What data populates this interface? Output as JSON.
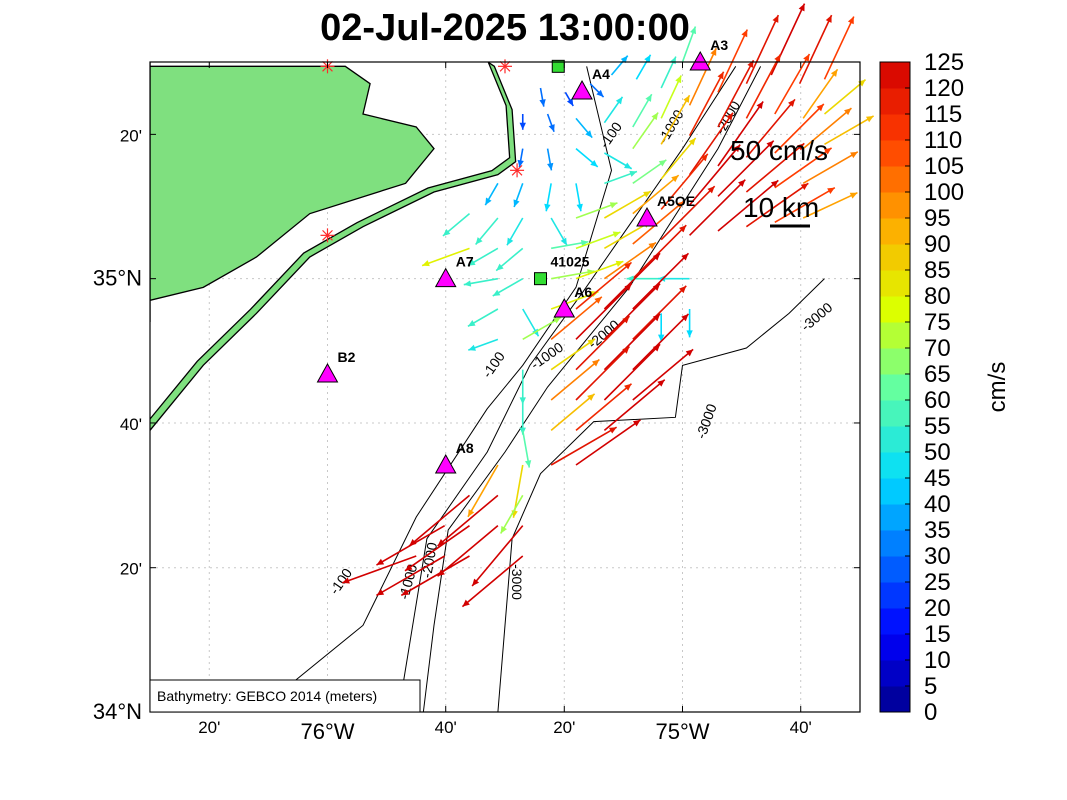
{
  "title": "02-Jul-2025 13:00:00",
  "lat_ticks": [
    {
      "lat": 34.0,
      "label": "34°N"
    },
    {
      "lat": 34.333,
      "label": "20'"
    },
    {
      "lat": 34.667,
      "label": "40'"
    },
    {
      "lat": 35.0,
      "label": "35°N"
    },
    {
      "lat": 35.333,
      "label": "20'"
    }
  ],
  "lon_ticks": [
    {
      "lon": -76.333,
      "label": "20'"
    },
    {
      "lon": -76.0,
      "label": "76°W"
    },
    {
      "lon": -75.667,
      "label": "40'"
    },
    {
      "lon": -75.333,
      "label": "20'"
    },
    {
      "lon": -75.0,
      "label": "75°W"
    },
    {
      "lon": -74.667,
      "label": "40'"
    }
  ],
  "stations": [
    {
      "id": "A4",
      "label": "A4",
      "lon": -75.283,
      "lat": 35.433,
      "symbol": "triangle",
      "color": "#ff00ff"
    },
    {
      "id": "A3",
      "label": "A3",
      "lon": -74.95,
      "lat": 35.5,
      "symbol": "triangle",
      "color": "#ff00ff"
    },
    {
      "id": "A5OE",
      "label": "A5OE",
      "lon": -75.1,
      "lat": 35.14,
      "symbol": "triangle",
      "color": "#ff00ff"
    },
    {
      "id": "A7",
      "label": "A7",
      "lon": -75.667,
      "lat": 35.0,
      "symbol": "triangle",
      "color": "#ff00ff"
    },
    {
      "id": "A6",
      "label": "A6",
      "lon": -75.333,
      "lat": 34.93,
      "symbol": "triangle",
      "color": "#ff00ff"
    },
    {
      "id": "B2",
      "label": "B2",
      "lon": -76.0,
      "lat": 34.78,
      "symbol": "triangle",
      "color": "#ff00ff"
    },
    {
      "id": "A8",
      "label": "A8",
      "lon": -75.667,
      "lat": 34.57,
      "symbol": "triangle",
      "color": "#ff00ff"
    },
    {
      "id": "41025",
      "label": "41025",
      "lon": -75.4,
      "lat": 35.0,
      "symbol": "square",
      "color": "#33dd33"
    },
    {
      "id": "buoy-top",
      "label": "",
      "lon": -75.35,
      "lat": 35.49,
      "symbol": "square",
      "color": "#33dd33"
    }
  ],
  "radar_sites": [
    {
      "lon": -76.0,
      "lat": 35.49
    },
    {
      "lon": -75.5,
      "lat": 35.49
    },
    {
      "lon": -75.466,
      "lat": 35.25
    },
    {
      "lon": -76.0,
      "lat": 35.1
    }
  ],
  "contours": [
    {
      "level": -100,
      "label": "-100",
      "points": [
        [
          -76.2,
          34.0
        ],
        [
          -75.9,
          34.2
        ],
        [
          -75.75,
          34.45
        ],
        [
          -75.55,
          34.7
        ],
        [
          -75.45,
          34.8
        ],
        [
          -75.3,
          34.98
        ],
        [
          -75.2,
          35.25
        ],
        [
          -75.27,
          35.49
        ]
      ]
    },
    {
      "level": -1000,
      "label": "-1000",
      "points": [
        [
          -75.8,
          34.0
        ],
        [
          -75.76,
          34.2
        ],
        [
          -75.72,
          34.4
        ],
        [
          -75.55,
          34.6
        ],
        [
          -75.43,
          34.8
        ],
        [
          -75.28,
          34.97
        ],
        [
          -75.0,
          35.3
        ],
        [
          -74.85,
          35.49
        ]
      ]
    },
    {
      "level": -2000,
      "label": "-2000",
      "points": [
        [
          -75.73,
          34.0
        ],
        [
          -75.7,
          34.2
        ],
        [
          -75.66,
          34.42
        ],
        [
          -75.5,
          34.6
        ],
        [
          -75.38,
          34.75
        ],
        [
          -75.15,
          34.98
        ],
        [
          -74.9,
          35.3
        ],
        [
          -74.78,
          35.49
        ]
      ]
    },
    {
      "level": -3000,
      "label": "-3000",
      "points": [
        [
          -75.52,
          34.0
        ],
        [
          -75.5,
          34.2
        ],
        [
          -75.48,
          34.4
        ],
        [
          -75.4,
          34.55
        ],
        [
          -75.25,
          34.67
        ],
        [
          -75.02,
          34.68
        ],
        [
          -75.0,
          34.8
        ],
        [
          -74.82,
          34.84
        ],
        [
          -74.7,
          34.92
        ],
        [
          -74.6,
          35.0
        ]
      ]
    }
  ],
  "contour_labels": [
    {
      "text": "-100",
      "lon": -75.53,
      "lat": 34.8,
      "angle": -55
    },
    {
      "text": "-100",
      "lon": -75.96,
      "lat": 34.3,
      "angle": -55
    },
    {
      "text": "-100",
      "lon": -75.2,
      "lat": 35.33,
      "angle": -55
    },
    {
      "text": "-1000",
      "lon": -75.38,
      "lat": 34.82,
      "angle": -35
    },
    {
      "text": "-1000",
      "lon": -75.77,
      "lat": 34.3,
      "angle": -75
    },
    {
      "text": "-1000",
      "lon": -75.03,
      "lat": 35.35,
      "angle": -60
    },
    {
      "text": "-2000",
      "lon": -75.22,
      "lat": 34.87,
      "angle": -40
    },
    {
      "text": "-2000",
      "lon": -75.71,
      "lat": 34.35,
      "angle": -80
    },
    {
      "text": "-2000",
      "lon": -74.87,
      "lat": 35.37,
      "angle": -60
    },
    {
      "text": "-3000",
      "lon": -75.47,
      "lat": 34.3,
      "angle": 90
    },
    {
      "text": "-3000",
      "lon": -74.93,
      "lat": 34.67,
      "angle": -70
    },
    {
      "text": "-3000",
      "lon": -74.62,
      "lat": 34.91,
      "angle": -40
    }
  ],
  "coastline": {
    "mainland": [
      [
        -76.5,
        35.49
      ],
      [
        -75.95,
        35.49
      ],
      [
        -75.88,
        35.45
      ],
      [
        -75.9,
        35.38
      ],
      [
        -75.75,
        35.35
      ],
      [
        -75.7,
        35.3
      ],
      [
        -75.78,
        35.22
      ],
      [
        -76.05,
        35.15
      ],
      [
        -76.2,
        35.05
      ],
      [
        -76.35,
        34.98
      ],
      [
        -76.5,
        34.95
      ]
    ],
    "barrier": [
      [
        -75.53,
        35.49
      ],
      [
        -75.48,
        35.39
      ],
      [
        -75.47,
        35.27
      ],
      [
        -75.52,
        35.24
      ],
      [
        -75.7,
        35.2
      ],
      [
        -75.9,
        35.12
      ],
      [
        -76.05,
        35.05
      ],
      [
        -76.2,
        34.92
      ],
      [
        -76.35,
        34.8
      ],
      [
        -76.5,
        34.65
      ]
    ],
    "land_color": "#7fe07f"
  },
  "vectors": [
    [
      -75.4,
      35.44,
      -80,
      30
    ],
    [
      -75.33,
      35.43,
      -60,
      25
    ],
    [
      -75.26,
      35.45,
      -45,
      30
    ],
    [
      -75.2,
      35.47,
      50,
      40
    ],
    [
      -75.13,
      35.46,
      60,
      45
    ],
    [
      -75.06,
      35.44,
      65,
      55
    ],
    [
      -75.0,
      35.5,
      70,
      60
    ],
    [
      -75.45,
      35.38,
      -90,
      25
    ],
    [
      -75.38,
      35.38,
      -70,
      30
    ],
    [
      -75.3,
      35.37,
      -50,
      40
    ],
    [
      -75.22,
      35.36,
      55,
      50
    ],
    [
      -75.14,
      35.35,
      60,
      60
    ],
    [
      -75.06,
      35.37,
      65,
      75
    ],
    [
      -74.98,
      35.4,
      65,
      100
    ],
    [
      -74.9,
      35.43,
      65,
      110
    ],
    [
      -74.82,
      35.45,
      65,
      120
    ],
    [
      -74.75,
      35.47,
      65,
      125
    ],
    [
      -74.67,
      35.45,
      65,
      120
    ],
    [
      -74.6,
      35.46,
      65,
      110
    ],
    [
      -75.45,
      35.3,
      -100,
      30
    ],
    [
      -75.38,
      35.3,
      -80,
      35
    ],
    [
      -75.3,
      35.3,
      -40,
      45
    ],
    [
      -75.22,
      35.29,
      -30,
      50
    ],
    [
      -75.14,
      35.3,
      55,
      70
    ],
    [
      -75.06,
      35.31,
      60,
      90
    ],
    [
      -74.98,
      35.33,
      62,
      115
    ],
    [
      -74.9,
      35.35,
      62,
      120
    ],
    [
      -74.82,
      35.37,
      62,
      115
    ],
    [
      -74.74,
      35.38,
      60,
      110
    ],
    [
      -74.66,
      35.37,
      55,
      95
    ],
    [
      -74.6,
      35.38,
      40,
      85
    ],
    [
      -75.52,
      35.22,
      -120,
      40
    ],
    [
      -75.45,
      35.22,
      -110,
      40
    ],
    [
      -75.37,
      35.22,
      -100,
      45
    ],
    [
      -75.3,
      35.22,
      -80,
      45
    ],
    [
      -75.22,
      35.22,
      20,
      55
    ],
    [
      -75.14,
      35.22,
      35,
      65
    ],
    [
      -75.06,
      35.23,
      50,
      85
    ],
    [
      -74.98,
      35.24,
      55,
      120
    ],
    [
      -74.9,
      35.26,
      55,
      125
    ],
    [
      -74.82,
      35.28,
      50,
      120
    ],
    [
      -74.74,
      35.29,
      45,
      110
    ],
    [
      -74.66,
      35.3,
      40,
      100
    ],
    [
      -74.6,
      35.31,
      30,
      90
    ],
    [
      -75.6,
      35.15,
      -140,
      55
    ],
    [
      -75.52,
      35.14,
      -130,
      55
    ],
    [
      -75.45,
      35.14,
      -120,
      50
    ],
    [
      -75.37,
      35.14,
      -60,
      50
    ],
    [
      -75.3,
      35.14,
      20,
      70
    ],
    [
      -75.22,
      35.14,
      30,
      85
    ],
    [
      -75.14,
      35.15,
      40,
      95
    ],
    [
      -75.06,
      35.16,
      50,
      115
    ],
    [
      -74.98,
      35.17,
      50,
      125
    ],
    [
      -74.9,
      35.19,
      45,
      125
    ],
    [
      -74.82,
      35.2,
      40,
      120
    ],
    [
      -74.74,
      35.21,
      35,
      110
    ],
    [
      -74.66,
      35.22,
      30,
      100
    ],
    [
      -75.6,
      35.07,
      -160,
      80
    ],
    [
      -75.52,
      35.07,
      -150,
      55
    ],
    [
      -75.45,
      35.07,
      -140,
      55
    ],
    [
      -75.37,
      35.07,
      10,
      60
    ],
    [
      -75.3,
      35.07,
      20,
      75
    ],
    [
      -75.22,
      35.07,
      30,
      85
    ],
    [
      -75.14,
      35.08,
      40,
      105
    ],
    [
      -75.06,
      35.09,
      45,
      120
    ],
    [
      -74.98,
      35.1,
      45,
      125
    ],
    [
      -74.9,
      35.11,
      40,
      125
    ],
    [
      -74.82,
      35.12,
      35,
      120
    ],
    [
      -74.74,
      35.13,
      30,
      110
    ],
    [
      -74.66,
      35.14,
      25,
      95
    ],
    [
      -75.52,
      35.0,
      -170,
      55
    ],
    [
      -75.45,
      35.0,
      -150,
      55
    ],
    [
      -75.37,
      35.0,
      10,
      70
    ],
    [
      -75.3,
      35.0,
      20,
      80
    ],
    [
      -75.22,
      35.0,
      35,
      100
    ],
    [
      -75.14,
      35.0,
      45,
      120
    ],
    [
      -75.06,
      35.0,
      180,
      55
    ],
    [
      -74.98,
      35.0,
      180,
      50
    ],
    [
      -75.52,
      34.93,
      -150,
      55
    ],
    [
      -75.45,
      34.93,
      -60,
      50
    ],
    [
      -75.37,
      34.93,
      20,
      80
    ],
    [
      -75.3,
      34.93,
      40,
      115
    ],
    [
      -75.22,
      34.93,
      45,
      125
    ],
    [
      -75.14,
      34.93,
      45,
      125
    ],
    [
      -75.06,
      34.92,
      -90,
      45
    ],
    [
      -74.98,
      34.93,
      -90,
      45
    ],
    [
      -75.52,
      34.86,
      -160,
      50
    ],
    [
      -75.45,
      34.86,
      30,
      70
    ],
    [
      -75.37,
      34.86,
      40,
      105
    ],
    [
      -75.3,
      34.86,
      45,
      125
    ],
    [
      -75.22,
      34.86,
      45,
      125
    ],
    [
      -75.14,
      34.86,
      45,
      120
    ],
    [
      -75.45,
      34.79,
      -90,
      55
    ],
    [
      -75.37,
      34.79,
      35,
      85
    ],
    [
      -75.3,
      34.79,
      45,
      120
    ],
    [
      -75.22,
      34.79,
      45,
      125
    ],
    [
      -75.14,
      34.79,
      45,
      125
    ],
    [
      -75.45,
      34.72,
      -90,
      55
    ],
    [
      -75.37,
      34.72,
      40,
      100
    ],
    [
      -75.3,
      34.72,
      45,
      120
    ],
    [
      -75.22,
      34.72,
      45,
      125
    ],
    [
      -75.14,
      34.72,
      40,
      125
    ],
    [
      -75.45,
      34.65,
      -80,
      60
    ],
    [
      -75.37,
      34.65,
      40,
      90
    ],
    [
      -75.3,
      34.65,
      40,
      115
    ],
    [
      -75.22,
      34.65,
      40,
      125
    ],
    [
      -75.52,
      34.57,
      -120,
      95
    ],
    [
      -75.45,
      34.57,
      -100,
      85
    ],
    [
      -75.37,
      34.57,
      30,
      120
    ],
    [
      -75.3,
      34.57,
      35,
      125
    ],
    [
      -75.6,
      34.5,
      -140,
      125
    ],
    [
      -75.52,
      34.5,
      -140,
      125
    ],
    [
      -75.45,
      34.5,
      -120,
      70
    ],
    [
      -75.67,
      34.43,
      -150,
      125
    ],
    [
      -75.6,
      34.43,
      -145,
      125
    ],
    [
      -75.52,
      34.43,
      -140,
      125
    ],
    [
      -75.45,
      34.43,
      -130,
      125
    ],
    [
      -75.75,
      34.36,
      -160,
      125
    ],
    [
      -75.67,
      34.36,
      -150,
      125
    ],
    [
      -75.6,
      34.36,
      -150,
      125
    ],
    [
      -75.45,
      34.36,
      -140,
      125
    ]
  ],
  "colorbar": {
    "unit": "cm/s",
    "min": 0,
    "max": 125,
    "step": 5,
    "tick_labels": [
      "0",
      "5",
      "10",
      "15",
      "20",
      "25",
      "30",
      "35",
      "40",
      "45",
      "50",
      "55",
      "60",
      "65",
      "70",
      "75",
      "80",
      "85",
      "90",
      "95",
      "100",
      "105",
      "110",
      "115",
      "120",
      "125"
    ]
  },
  "scale": {
    "speed_label": "50 cm/s",
    "distance_label": "10 km",
    "speed_cms": 50
  },
  "bathymetry_note": "Bathymetry: GEBCO 2014 (meters)"
}
